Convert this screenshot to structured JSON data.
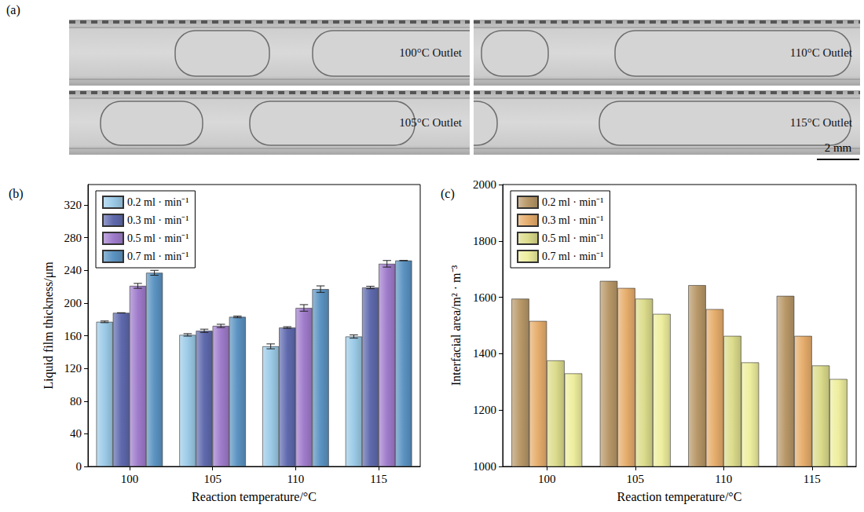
{
  "photos": {
    "label": "(a)",
    "tiles": [
      "100°C Outlet",
      "110°C Outlet",
      "105°C Outlet",
      "115°C Outlet"
    ],
    "scale_bar": "2 mm"
  },
  "chart_data": [
    {
      "type": "bar",
      "title": "(b)",
      "xlabel": "Reaction temperature/°C",
      "ylabel": "Liquid film thickness/μm",
      "categories": [
        100,
        105,
        110,
        115
      ],
      "series": [
        {
          "name": "0.2 ml · min⁻¹",
          "color": "#9ccbe8",
          "values": [
            177,
            161,
            147,
            159
          ],
          "errors": [
            1,
            1.5,
            3,
            2
          ]
        },
        {
          "name": "0.3 ml · min⁻¹",
          "color": "#5f6aae",
          "values": [
            188,
            166,
            170,
            219
          ],
          "errors": [
            0,
            2,
            1,
            1.5
          ]
        },
        {
          "name": "0.5 ml · min⁻¹",
          "color": "#a07ccc",
          "values": [
            221,
            172,
            194,
            248
          ],
          "errors": [
            3,
            2,
            4,
            4
          ]
        },
        {
          "name": "0.7 ml · min⁻¹",
          "color": "#5b93c2",
          "values": [
            237,
            183,
            217,
            252
          ],
          "errors": [
            3,
            1,
            4,
            0
          ]
        }
      ],
      "ylim": [
        0,
        345
      ],
      "yticks": [
        0,
        40,
        80,
        120,
        160,
        200,
        240,
        280,
        320
      ],
      "grid": false,
      "legend": "upper left"
    },
    {
      "type": "bar",
      "title": "(c)",
      "xlabel": "Reaction temperature/°C",
      "ylabel": "Interfacial area/m² · m⁻³",
      "categories": [
        100,
        105,
        110,
        115
      ],
      "series": [
        {
          "name": "0.2 ml · min⁻¹",
          "color": "#b89868",
          "values": [
            1595,
            1658,
            1643,
            1605
          ]
        },
        {
          "name": "0.3 ml · min⁻¹",
          "color": "#e6ad6c",
          "values": [
            1516,
            1633,
            1558,
            1463
          ]
        },
        {
          "name": "0.5 ml · min⁻¹",
          "color": "#dcdc8c",
          "values": [
            1376,
            1595,
            1463,
            1358
          ]
        },
        {
          "name": "0.7 ml · min⁻¹",
          "color": "#eeee9e",
          "values": [
            1330,
            1541,
            1369,
            1310
          ]
        }
      ],
      "ylim": [
        1000,
        2000
      ],
      "yticks": [
        1000,
        1200,
        1400,
        1600,
        1800,
        2000
      ],
      "grid": false,
      "legend": "upper left"
    }
  ]
}
